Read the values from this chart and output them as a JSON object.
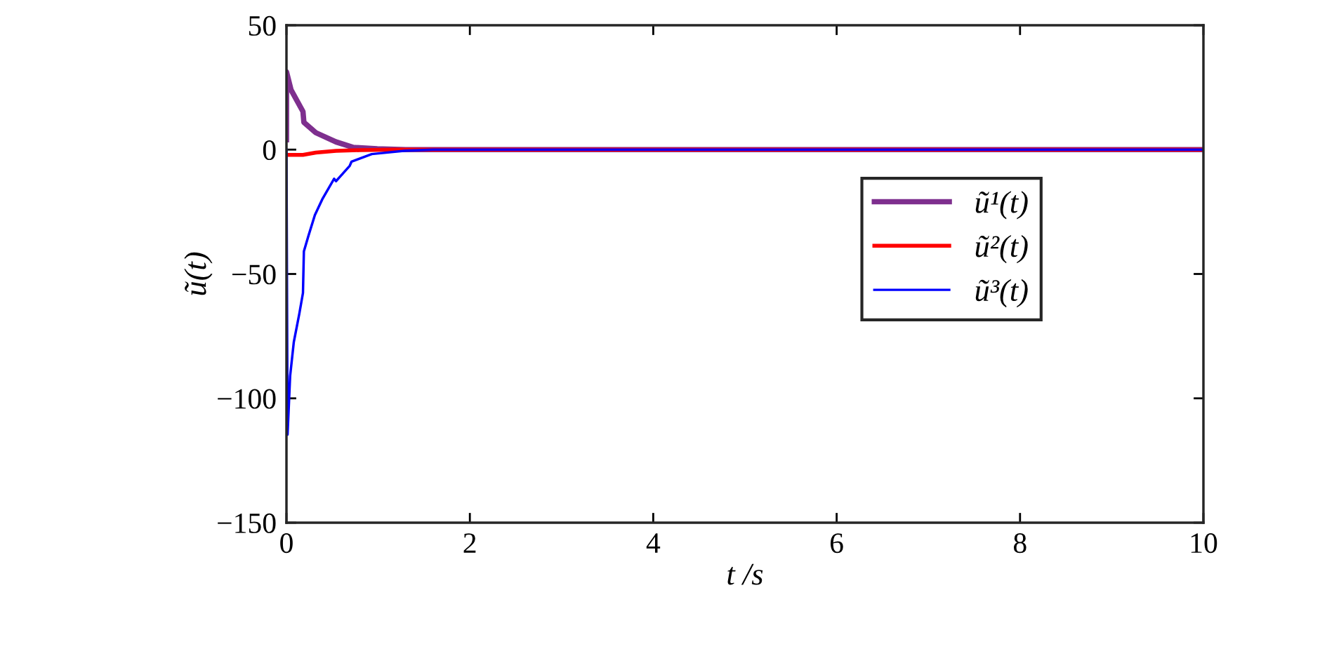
{
  "chart_data": {
    "type": "line",
    "xlabel": "t /s",
    "ylabel": "ũ(t)",
    "xlim": [
      0,
      10
    ],
    "ylim": [
      -150,
      50
    ],
    "xticks": [
      0,
      2,
      4,
      6,
      8,
      10
    ],
    "yticks": [
      -150,
      -100,
      -50,
      0,
      50
    ],
    "grid": false,
    "legend": "right",
    "marker": "none",
    "line_style": "solid",
    "series": [
      {
        "name": "ũ¹(t)",
        "color": "#7e2f8e",
        "x": [
          0,
          0.001,
          0.05,
          0.18,
          0.19,
          0.32,
          0.54,
          0.73,
          0.99,
          1.3,
          2,
          10
        ],
        "values": [
          4,
          31.2,
          24,
          15.3,
          11,
          6.8,
          3.1,
          0.9,
          0.3,
          0,
          0,
          0
        ]
      },
      {
        "name": "ũ²(t)",
        "color": "#ff0000",
        "x": [
          0,
          0.18,
          0.32,
          0.54,
          0.8,
          1.2,
          2,
          10
        ],
        "values": [
          -2.1,
          -2.1,
          -1.2,
          -0.5,
          -0.2,
          0,
          0,
          0
        ]
      },
      {
        "name": "ũ³(t)",
        "color": "#0000ff",
        "x": [
          0,
          0.012,
          0.04,
          0.08,
          0.14,
          0.18,
          0.19,
          0.24,
          0.31,
          0.39,
          0.52,
          0.54,
          0.69,
          0.71,
          0.93,
          1.3,
          1.6,
          2,
          10
        ],
        "values": [
          0,
          -114.6,
          -91,
          -77.4,
          -66,
          -57.6,
          -40.9,
          -34.6,
          -26.3,
          -20,
          -11.7,
          -12.7,
          -6.5,
          -4.8,
          -1.8,
          -0.4,
          0,
          0,
          0
        ]
      }
    ]
  }
}
